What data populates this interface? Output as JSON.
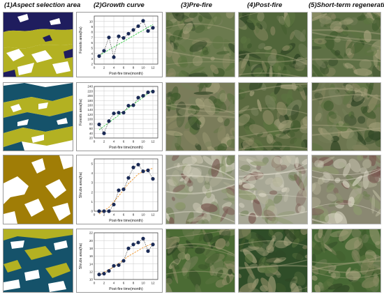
{
  "headers": [
    "(1)Aspect selection area",
    "(2)Growth curve",
    "(3)Pre-fire",
    "(4)Post-fire",
    "(5)Short-term regeneration"
  ],
  "colors": {
    "navy": "#1f1d5e",
    "olive": "#b3b122",
    "teal": "#15526a",
    "mustard": "#a07d06",
    "point": "#1a2a55",
    "fit_green": "#3fcf4f",
    "fit_orange": "#f0a040",
    "grid": "#c9c9c9"
  },
  "chart_data": [
    {
      "type": "scatter",
      "xlabel": "Post-fire time(month)",
      "ylabel": "Forests area(ha)",
      "xlim": [
        0,
        13
      ],
      "ylim": [
        2,
        11
      ],
      "x_ticks": [
        0,
        2,
        4,
        6,
        8,
        10,
        12
      ],
      "y_ticks": [
        2,
        3,
        4,
        5,
        6,
        7,
        8,
        9,
        10
      ],
      "x": [
        1,
        2,
        3,
        4,
        5,
        6,
        7,
        8,
        9,
        10,
        11,
        12
      ],
      "y": [
        3.5,
        4.5,
        7,
        3.3,
        7.2,
        6.9,
        7.7,
        8.4,
        9.1,
        10.1,
        8.2,
        8.8
      ],
      "fit_color": "#3fcf4f",
      "fit": [
        [
          1,
          3.6
        ],
        [
          12,
          9.4
        ]
      ],
      "connect_dashed": true
    },
    {
      "type": "scatter",
      "xlabel": "Post-fire time(month)",
      "ylabel": "Forests area(ha)",
      "xlim": [
        0,
        13
      ],
      "ylim": [
        20,
        240
      ],
      "x_ticks": [
        0,
        2,
        4,
        6,
        8,
        10,
        12
      ],
      "y_ticks": [
        20,
        40,
        60,
        80,
        100,
        120,
        140,
        160,
        180,
        200,
        220,
        240
      ],
      "x": [
        1,
        2,
        3,
        4,
        5,
        6,
        7,
        8,
        9,
        10,
        11,
        12
      ],
      "y": [
        78,
        40,
        92,
        125,
        128,
        128,
        158,
        160,
        192,
        200,
        215,
        218
      ],
      "fit_color": "#3fcf4f",
      "fit": [
        [
          1,
          55
        ],
        [
          12,
          225
        ]
      ],
      "connect_dashed": true
    },
    {
      "type": "scatter",
      "xlabel": "Post-fire time(month)",
      "ylabel": "Shrubs area(ha)",
      "xlim": [
        0,
        13
      ],
      "ylim": [
        0,
        5.5
      ],
      "x_ticks": [
        0,
        2,
        4,
        6,
        8,
        10,
        12
      ],
      "y_ticks": [
        0,
        1,
        2,
        3,
        4,
        5
      ],
      "x": [
        1,
        2,
        3,
        4,
        5,
        6,
        7,
        8,
        9,
        10,
        11,
        12
      ],
      "y": [
        0,
        0,
        0,
        0.7,
        2.2,
        2.3,
        3.5,
        4.6,
        4.9,
        4.2,
        4.3,
        3.4
      ],
      "fit_color": "#f0a040",
      "fit": [
        [
          1,
          -0.3
        ],
        [
          3,
          0.4
        ],
        [
          5,
          1.6
        ],
        [
          7,
          2.9
        ],
        [
          9,
          3.9
        ],
        [
          11,
          4.4
        ],
        [
          12,
          4.5
        ]
      ],
      "connect_dashed": true
    },
    {
      "type": "scatter",
      "xlabel": "Post-fire time(month)",
      "ylabel": "Shrubs area(ha)",
      "xlim": [
        0,
        13
      ],
      "ylim": [
        10,
        22
      ],
      "x_ticks": [
        0,
        2,
        4,
        6,
        8,
        10,
        12
      ],
      "y_ticks": [
        10,
        12,
        14,
        16,
        18,
        20,
        22
      ],
      "x": [
        1,
        2,
        3,
        4,
        5,
        6,
        7,
        8,
        9,
        10,
        11,
        12
      ],
      "y": [
        11.3,
        11.5,
        12.2,
        13.5,
        13.7,
        14.8,
        18,
        19,
        19.5,
        20.5,
        17.3,
        19
      ],
      "fit_color": "#f0a040",
      "fit": [
        [
          1,
          11.2
        ],
        [
          4,
          13.2
        ],
        [
          7,
          16
        ],
        [
          10,
          18.2
        ],
        [
          12,
          19.3
        ]
      ],
      "connect_dashed": true
    }
  ]
}
